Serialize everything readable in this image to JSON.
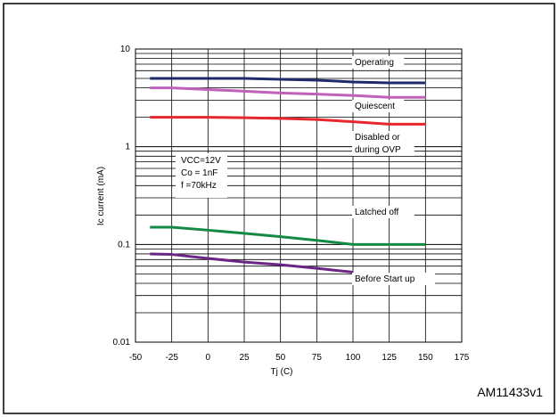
{
  "chart_data": {
    "type": "line",
    "xlabel": "Tj (C)",
    "ylabel": "Ic current (mA)",
    "figure_id": "AM11433v1",
    "xlim": [
      -50,
      175
    ],
    "ylim": [
      0.01,
      10
    ],
    "y_scale": "log",
    "grid": true,
    "x_ticks": [
      "-50",
      "-25",
      "0",
      "25",
      "50",
      "75",
      "100",
      "125",
      "150",
      "175"
    ],
    "y_ticks": [
      {
        "value": 10,
        "label": "10"
      },
      {
        "value": 1,
        "label": "1"
      },
      {
        "value": 0.1,
        "label": "0.1"
      },
      {
        "value": 0.01,
        "label": "0.01"
      }
    ],
    "conditions": [
      "VCC=12V",
      "Co = 1nF",
      "f =70kHz"
    ],
    "series": [
      {
        "name": "Operating",
        "color": "#1f2a6b",
        "x": [
          -40,
          0,
          25,
          50,
          75,
          100,
          125,
          150
        ],
        "y": [
          5.0,
          5.0,
          5.0,
          4.9,
          4.8,
          4.6,
          4.5,
          4.5
        ]
      },
      {
        "name": "Quiescent",
        "color": "#c060b8",
        "x": [
          -40,
          -25,
          0,
          25,
          50,
          75,
          100,
          125,
          150
        ],
        "y": [
          4.0,
          4.0,
          3.85,
          3.7,
          3.55,
          3.45,
          3.35,
          3.2,
          3.2
        ]
      },
      {
        "name": "Disabled or during OVP",
        "color": "#e8262d",
        "x": [
          -40,
          0,
          25,
          50,
          75,
          100,
          125,
          150
        ],
        "y": [
          2.0,
          2.0,
          1.98,
          1.95,
          1.9,
          1.8,
          1.7,
          1.7
        ]
      },
      {
        "name": "Latched off",
        "color": "#138a44",
        "x": [
          -40,
          -25,
          0,
          25,
          50,
          75,
          100,
          125,
          150
        ],
        "y": [
          0.15,
          0.15,
          0.14,
          0.13,
          0.12,
          0.11,
          0.1,
          0.1,
          0.1
        ]
      },
      {
        "name": "Before Start up",
        "color": "#6b2585",
        "x": [
          -40,
          -25,
          0,
          25,
          50,
          75,
          100
        ],
        "y": [
          0.08,
          0.079,
          0.072,
          0.066,
          0.062,
          0.057,
          0.052
        ]
      }
    ]
  }
}
